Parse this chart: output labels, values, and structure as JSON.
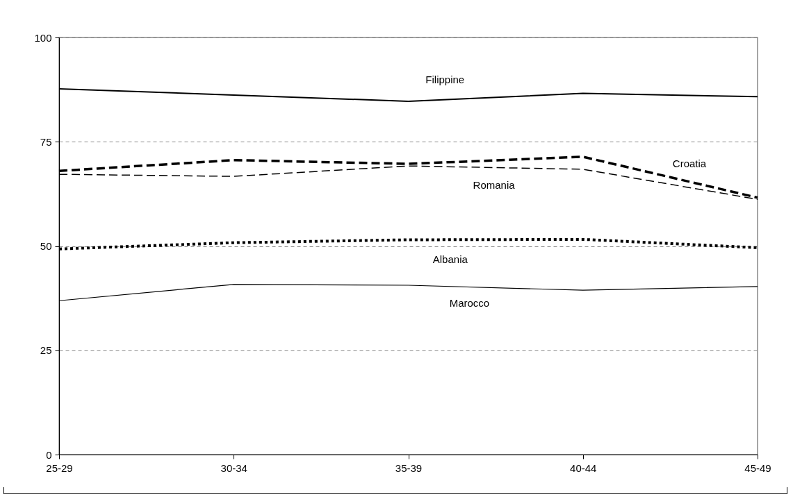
{
  "chart_data": {
    "type": "line",
    "categories": [
      "25-29",
      "30-34",
      "35-39",
      "40-44",
      "45-49"
    ],
    "ylim": [
      0,
      100
    ],
    "yticks": [
      0,
      25,
      50,
      75,
      100
    ],
    "grid": "y",
    "series": [
      {
        "name": "Filippine",
        "color": "#000000",
        "line_style": "solid",
        "values": [
          87.7,
          86.2,
          84.7,
          86.6,
          85.8
        ]
      },
      {
        "name": "Croatia",
        "color": "#000000",
        "line_style": "dashed",
        "values": [
          68.0,
          70.6,
          69.7,
          71.4,
          61.6
        ]
      },
      {
        "name": "Romania",
        "color": "#000000",
        "line_style": "dashed",
        "values": [
          67.2,
          66.7,
          69.2,
          68.4,
          61.2
        ]
      },
      {
        "name": "Albania",
        "color": "#000000",
        "line_style": "dotted",
        "values": [
          49.3,
          50.8,
          51.5,
          51.6,
          49.6
        ]
      },
      {
        "name": "Marocco",
        "color": "#000000",
        "line_style": "solid",
        "values": [
          36.9,
          40.8,
          40.6,
          39.4,
          40.3
        ]
      }
    ]
  }
}
